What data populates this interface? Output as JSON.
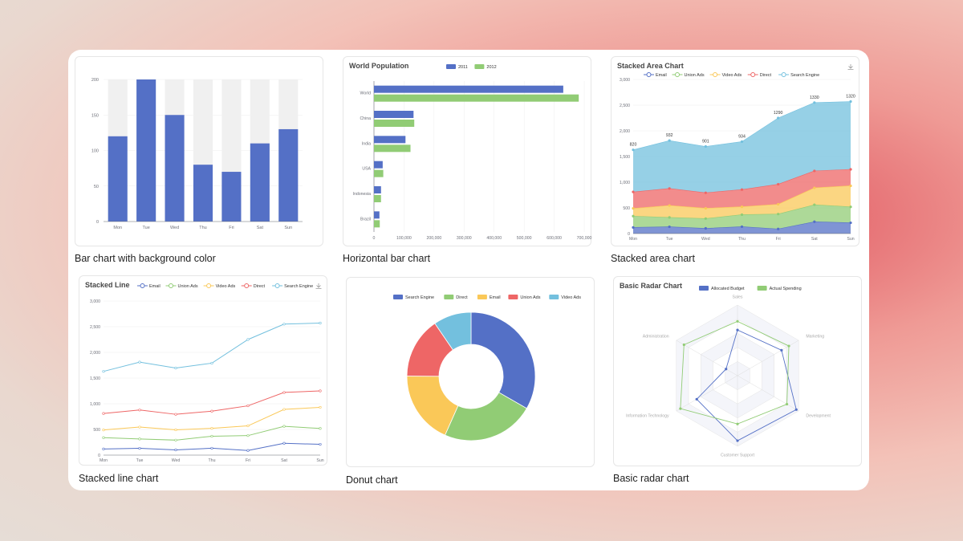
{
  "colors": {
    "blue": "#5470c6",
    "green": "#91cc75",
    "yellow": "#fac858",
    "red": "#ee6666",
    "cyan": "#73c0de"
  },
  "captions": [
    "Bar chart with background color",
    "Horizontal bar chart",
    "Stacked area chart",
    "Stacked line chart",
    "Donut chart",
    "Basic radar chart"
  ],
  "chart_data": [
    {
      "type": "bar",
      "title": "",
      "categories": [
        "Mon",
        "Tue",
        "Wed",
        "Thu",
        "Fri",
        "Sat",
        "Sun"
      ],
      "values": [
        120,
        200,
        150,
        80,
        70,
        110,
        130
      ],
      "ylim": [
        0,
        200
      ],
      "yticks": [
        0,
        50,
        100,
        150,
        200
      ],
      "background_bars": true
    },
    {
      "type": "bar",
      "orientation": "horizontal",
      "title": "World Population",
      "categories": [
        "Brazil",
        "Indonesia",
        "USA",
        "India",
        "China",
        "World"
      ],
      "series": [
        {
          "name": "2011",
          "values": [
            18203,
            23489,
            29034,
            104970,
            131744,
            630230
          ]
        },
        {
          "name": "2012",
          "values": [
            19325,
            23438,
            31000,
            121594,
            134141,
            681807
          ]
        }
      ],
      "xlim": [
        0,
        700000
      ],
      "xticks": [
        "0",
        "100,000",
        "200,000",
        "300,000",
        "400,000",
        "500,000",
        "600,000",
        "700,000"
      ],
      "legend": "top"
    },
    {
      "type": "area",
      "stacked": true,
      "title": "Stacked Area Chart",
      "categories": [
        "Mon",
        "Tue",
        "Wed",
        "Thu",
        "Fri",
        "Sat",
        "Sun"
      ],
      "series": [
        {
          "name": "Email",
          "values": [
            120,
            132,
            101,
            134,
            90,
            230,
            210
          ]
        },
        {
          "name": "Union Ads",
          "values": [
            220,
            182,
            191,
            234,
            290,
            330,
            310
          ]
        },
        {
          "name": "Video Ads",
          "values": [
            150,
            232,
            201,
            154,
            190,
            330,
            410
          ]
        },
        {
          "name": "Direct",
          "values": [
            320,
            332,
            301,
            334,
            390,
            330,
            320
          ]
        },
        {
          "name": "Search Engine",
          "values": [
            820,
            932,
            901,
            934,
            1290,
            1330,
            1320
          ]
        }
      ],
      "ylim": [
        0,
        3000
      ],
      "yticks": [
        "0",
        "500",
        "1,000",
        "1,500",
        "2,000",
        "2,500",
        "3,000"
      ],
      "top_labels": true,
      "legend": "top"
    },
    {
      "type": "line",
      "stacked": true,
      "title": "Stacked Line",
      "categories": [
        "Mon",
        "Tue",
        "Wed",
        "Thu",
        "Fri",
        "Sat",
        "Sun"
      ],
      "series": [
        {
          "name": "Email",
          "values": [
            120,
            132,
            101,
            134,
            90,
            230,
            210
          ]
        },
        {
          "name": "Union Ads",
          "values": [
            220,
            182,
            191,
            234,
            290,
            330,
            310
          ]
        },
        {
          "name": "Video Ads",
          "values": [
            150,
            232,
            201,
            154,
            190,
            330,
            410
          ]
        },
        {
          "name": "Direct",
          "values": [
            320,
            332,
            301,
            334,
            390,
            330,
            320
          ]
        },
        {
          "name": "Search Engine",
          "values": [
            820,
            932,
            901,
            934,
            1290,
            1330,
            1320
          ]
        }
      ],
      "ylim": [
        0,
        3000
      ],
      "yticks": [
        "0",
        "500",
        "1,000",
        "1,500",
        "2,000",
        "2,500",
        "3,000"
      ],
      "legend": "top"
    },
    {
      "type": "pie",
      "donut": true,
      "title": "",
      "labels": [
        "Search Engine",
        "Direct",
        "Email",
        "Union Ads",
        "Video Ads"
      ],
      "values": [
        1048,
        735,
        580,
        484,
        300
      ],
      "legend": "top"
    },
    {
      "type": "radar",
      "title": "Basic Radar Chart",
      "indicators": [
        {
          "name": "Sales",
          "max": 6500
        },
        {
          "name": "Administration",
          "max": 16000
        },
        {
          "name": "Information Technology",
          "max": 30000
        },
        {
          "name": "Customer Support",
          "max": 38000
        },
        {
          "name": "Development",
          "max": 52000
        },
        {
          "name": "Marketing",
          "max": 25000
        }
      ],
      "series": [
        {
          "name": "Allocated Budget",
          "values": [
            4200,
            3000,
            20000,
            35000,
            50000,
            18000
          ]
        },
        {
          "name": "Actual Spending",
          "values": [
            5000,
            14000,
            28000,
            26000,
            42000,
            21000
          ]
        }
      ],
      "legend": "top"
    }
  ]
}
